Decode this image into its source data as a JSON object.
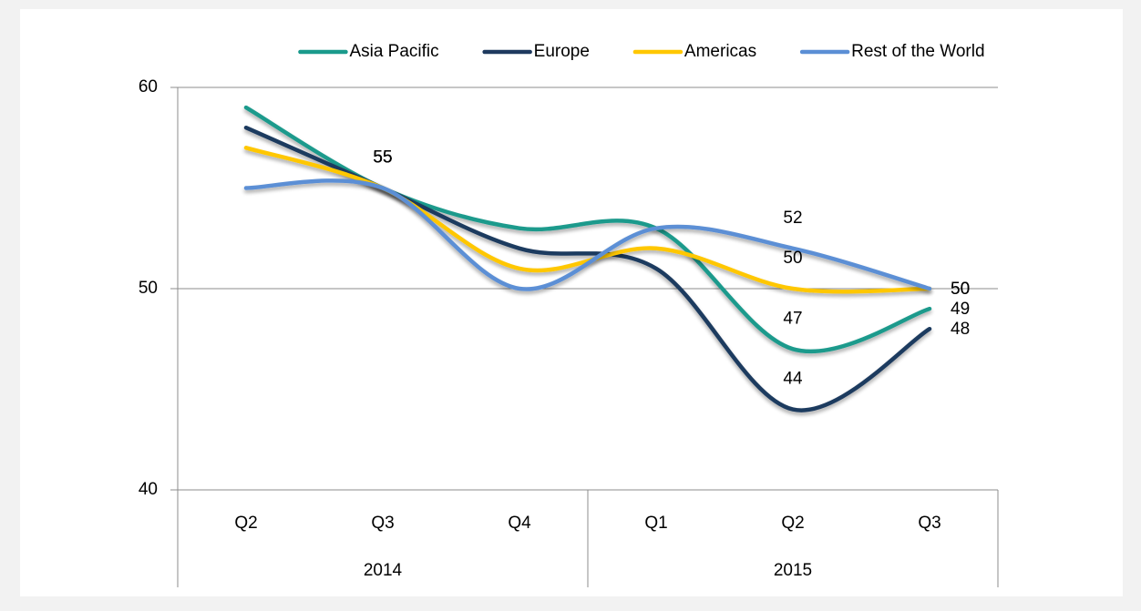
{
  "chart_data": {
    "type": "line",
    "categories": [
      "Q2",
      "Q3",
      "Q4",
      "Q1",
      "Q2",
      "Q3"
    ],
    "groups": [
      {
        "label": "2014",
        "span": 3
      },
      {
        "label": "2015",
        "span": 3
      }
    ],
    "series": [
      {
        "name": "Asia Pacific",
        "color": "#1a9a8c",
        "values": [
          59,
          55,
          53,
          53,
          47,
          49
        ]
      },
      {
        "name": "Europe",
        "color": "#1e3a5f",
        "values": [
          58,
          55,
          52,
          51,
          44,
          48
        ]
      },
      {
        "name": "Americas",
        "color": "#ffc700",
        "values": [
          57,
          55,
          51,
          52,
          50,
          50
        ]
      },
      {
        "name": "Rest of the World",
        "color": "#5b8fd5",
        "values": [
          55,
          55,
          50,
          53,
          52,
          50
        ]
      }
    ],
    "data_labels": [
      1,
      4,
      5
    ],
    "ylim": [
      40,
      60
    ],
    "yticks": [
      40,
      50,
      60
    ],
    "grid": true,
    "legend": "top",
    "smooth": true
  }
}
